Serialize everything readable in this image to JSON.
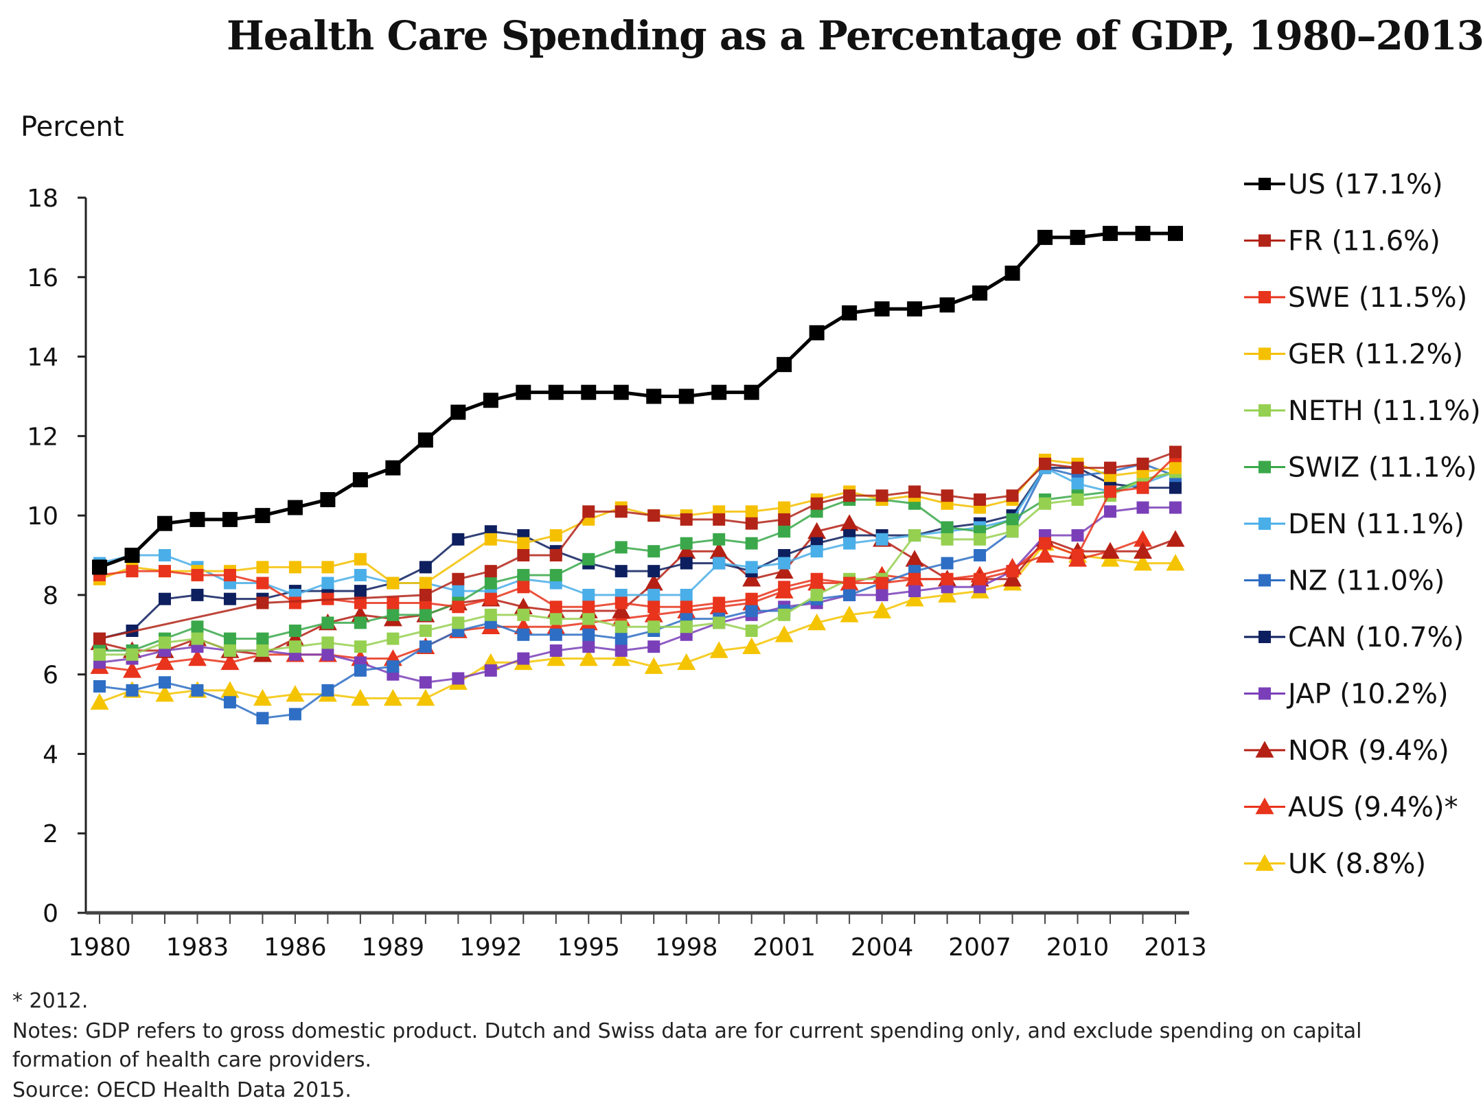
{
  "chart_data": {
    "type": "line",
    "title": "Health Care Spending as a Percentage of GDP, 1980–2013",
    "ylabel": "Percent",
    "xlabel": "",
    "ylim": [
      0,
      18
    ],
    "yticks": [
      0,
      2,
      4,
      6,
      8,
      10,
      12,
      14,
      16,
      18
    ],
    "xlim": [
      1980,
      2013
    ],
    "xtick_labels": [
      "1980",
      "1983",
      "1986",
      "1989",
      "1992",
      "1995",
      "1998",
      "2001",
      "2004",
      "2007",
      "2010",
      "2013"
    ],
    "x": [
      1980,
      1981,
      1982,
      1983,
      1984,
      1985,
      1986,
      1987,
      1988,
      1989,
      1990,
      1991,
      1992,
      1993,
      1994,
      1995,
      1996,
      1997,
      1998,
      1999,
      2000,
      2001,
      2002,
      2003,
      2004,
      2005,
      2006,
      2007,
      2008,
      2009,
      2010,
      2011,
      2012,
      2013
    ],
    "legend_position": "right",
    "grid": false,
    "series": [
      {
        "name": "US",
        "label": "US (17.1%)",
        "color": "#000000",
        "marker": "square",
        "values": [
          8.7,
          9.0,
          9.8,
          9.9,
          9.9,
          10.0,
          10.2,
          10.4,
          10.9,
          11.2,
          11.9,
          12.6,
          12.9,
          13.1,
          13.1,
          13.1,
          13.1,
          13.0,
          13.0,
          13.1,
          13.1,
          13.8,
          14.6,
          15.1,
          15.2,
          15.2,
          15.3,
          15.6,
          16.1,
          17.0,
          17.0,
          17.1,
          17.1,
          17.1
        ]
      },
      {
        "name": "FR",
        "label": "FR (11.6%)",
        "color": "#b22418",
        "marker": "square",
        "values": [
          6.9,
          null,
          null,
          null,
          null,
          7.8,
          null,
          null,
          null,
          null,
          8.0,
          8.4,
          8.6,
          9.0,
          9.0,
          10.1,
          10.1,
          10.0,
          9.9,
          9.9,
          9.8,
          9.9,
          10.3,
          10.5,
          10.5,
          10.6,
          10.5,
          10.4,
          10.5,
          11.3,
          11.2,
          11.2,
          11.3,
          11.6
        ]
      },
      {
        "name": "SWE",
        "label": "SWE (11.5%)",
        "color": "#e8341c",
        "marker": "square",
        "values": [
          8.5,
          8.6,
          8.6,
          8.5,
          8.5,
          8.3,
          7.8,
          7.9,
          7.8,
          7.8,
          7.8,
          7.7,
          7.9,
          8.2,
          7.7,
          7.7,
          7.8,
          7.7,
          7.7,
          7.8,
          7.9,
          8.2,
          8.4,
          8.3,
          8.3,
          8.4,
          8.4,
          8.4,
          8.6,
          9.3,
          9.0,
          10.6,
          10.7,
          11.5
        ]
      },
      {
        "name": "GER",
        "label": "GER (11.2%)",
        "color": "#f5c000",
        "marker": "square",
        "values": [
          8.4,
          8.7,
          8.6,
          8.6,
          8.6,
          8.7,
          8.7,
          8.7,
          8.9,
          8.3,
          8.3,
          null,
          9.4,
          9.3,
          9.5,
          9.9,
          10.2,
          10.0,
          10.0,
          10.1,
          10.1,
          10.2,
          10.4,
          10.6,
          10.4,
          10.5,
          10.3,
          10.2,
          10.4,
          11.4,
          11.3,
          11.0,
          11.1,
          11.2
        ]
      },
      {
        "name": "NETH",
        "label": "NETH (11.1%)",
        "color": "#96d050",
        "marker": "square",
        "values": [
          6.5,
          6.5,
          6.8,
          6.9,
          6.6,
          6.6,
          6.7,
          6.8,
          6.7,
          6.9,
          7.1,
          7.3,
          7.5,
          7.5,
          7.4,
          7.4,
          7.2,
          7.2,
          7.2,
          7.3,
          7.1,
          7.5,
          8.0,
          8.4,
          8.4,
          9.5,
          9.4,
          9.4,
          9.6,
          10.3,
          10.4,
          10.5,
          10.9,
          11.1
        ]
      },
      {
        "name": "SWIZ",
        "label": "SWIZ (11.1%)",
        "color": "#3aa84a",
        "marker": "square",
        "values": [
          6.6,
          6.6,
          6.9,
          7.2,
          6.9,
          6.9,
          7.1,
          7.3,
          7.3,
          7.5,
          7.5,
          7.8,
          8.3,
          8.5,
          8.5,
          8.9,
          9.2,
          9.1,
          9.3,
          9.4,
          9.3,
          9.6,
          10.1,
          10.4,
          10.4,
          10.3,
          9.7,
          9.6,
          9.9,
          10.4,
          10.5,
          10.6,
          10.9,
          11.1
        ]
      },
      {
        "name": "DEN",
        "label": "DEN (11.1%)",
        "color": "#4aaee8",
        "marker": "square",
        "values": [
          8.8,
          9.0,
          9.0,
          8.7,
          8.3,
          8.3,
          8.0,
          8.3,
          8.5,
          8.3,
          8.3,
          8.1,
          8.1,
          8.4,
          8.3,
          8.0,
          8.0,
          8.0,
          8.0,
          8.8,
          8.7,
          8.8,
          9.1,
          9.3,
          9.4,
          9.5,
          9.6,
          9.7,
          9.9,
          11.2,
          10.8,
          10.6,
          10.8,
          11.1
        ]
      },
      {
        "name": "NZ",
        "label": "NZ (11.0%)",
        "color": "#2e6ec4",
        "marker": "square",
        "values": [
          5.7,
          5.6,
          5.8,
          5.6,
          5.3,
          4.9,
          5.0,
          5.6,
          6.1,
          6.2,
          6.7,
          7.1,
          7.3,
          7.0,
          7.0,
          7.0,
          6.9,
          7.1,
          7.4,
          7.4,
          7.6,
          7.6,
          7.9,
          8.0,
          8.3,
          8.6,
          8.8,
          9.0,
          9.6,
          11.2,
          11.0,
          11.1,
          11.3,
          11.0
        ]
      },
      {
        "name": "CAN",
        "label": "CAN (10.7%)",
        "color": "#0d1f5e",
        "marker": "square",
        "values": [
          6.9,
          7.1,
          7.9,
          8.0,
          7.9,
          7.9,
          8.1,
          8.1,
          8.1,
          8.3,
          8.7,
          9.4,
          9.6,
          9.5,
          9.1,
          8.8,
          8.6,
          8.6,
          8.8,
          8.8,
          8.6,
          9.0,
          9.3,
          9.5,
          9.5,
          9.5,
          9.7,
          9.8,
          10.0,
          11.2,
          11.2,
          10.8,
          10.7,
          10.7
        ]
      },
      {
        "name": "JAP",
        "label": "JAP (10.2%)",
        "color": "#7a3fb8",
        "marker": "square",
        "values": [
          6.3,
          6.4,
          6.6,
          6.7,
          6.6,
          6.6,
          6.5,
          6.5,
          6.3,
          6.0,
          5.8,
          5.9,
          6.1,
          6.4,
          6.6,
          6.7,
          6.6,
          6.7,
          7.0,
          7.3,
          7.5,
          7.7,
          7.8,
          8.0,
          8.0,
          8.1,
          8.2,
          8.2,
          8.6,
          9.5,
          9.5,
          10.1,
          10.2,
          10.2
        ]
      },
      {
        "name": "NOR",
        "label": "NOR (9.4%)",
        "color": "#b52014",
        "marker": "triangle",
        "values": [
          6.8,
          6.6,
          6.6,
          6.9,
          6.6,
          6.5,
          6.9,
          7.3,
          7.5,
          7.4,
          7.5,
          7.8,
          7.9,
          7.7,
          7.6,
          7.6,
          7.6,
          8.3,
          9.1,
          9.1,
          8.4,
          8.6,
          9.6,
          9.8,
          9.4,
          8.9,
          8.4,
          8.4,
          8.4,
          9.4,
          9.1,
          9.1,
          9.1,
          9.4
        ]
      },
      {
        "name": "AUS",
        "label": "AUS (9.4%)*",
        "color": "#e8341c",
        "marker": "triangle",
        "values": [
          6.2,
          6.1,
          6.3,
          6.4,
          6.3,
          6.5,
          6.5,
          6.5,
          6.4,
          6.4,
          6.7,
          7.1,
          7.2,
          7.2,
          7.2,
          7.3,
          7.4,
          7.5,
          7.6,
          7.7,
          7.8,
          8.1,
          8.3,
          8.3,
          8.5,
          8.4,
          8.4,
          8.5,
          8.7,
          9.0,
          8.9,
          9.1,
          9.4,
          null
        ]
      },
      {
        "name": "UK",
        "label": "UK (8.8%)",
        "color": "#f5c400",
        "marker": "triangle",
        "values": [
          5.3,
          5.6,
          5.5,
          5.6,
          5.6,
          5.4,
          5.5,
          5.5,
          5.4,
          5.4,
          5.4,
          5.8,
          6.3,
          6.3,
          6.4,
          6.4,
          6.4,
          6.2,
          6.3,
          6.6,
          6.7,
          7.0,
          7.3,
          7.5,
          7.6,
          7.9,
          8.0,
          8.1,
          8.3,
          9.3,
          9.0,
          8.9,
          8.8,
          8.8
        ]
      }
    ]
  },
  "notes": {
    "footnote": "* 2012.",
    "notes_line": "Notes: GDP refers to gross domestic product. Dutch and Swiss data are for current spending only, and exclude spending on capital formation of health care providers.",
    "source": "Source:  OECD Health Data 2015."
  }
}
